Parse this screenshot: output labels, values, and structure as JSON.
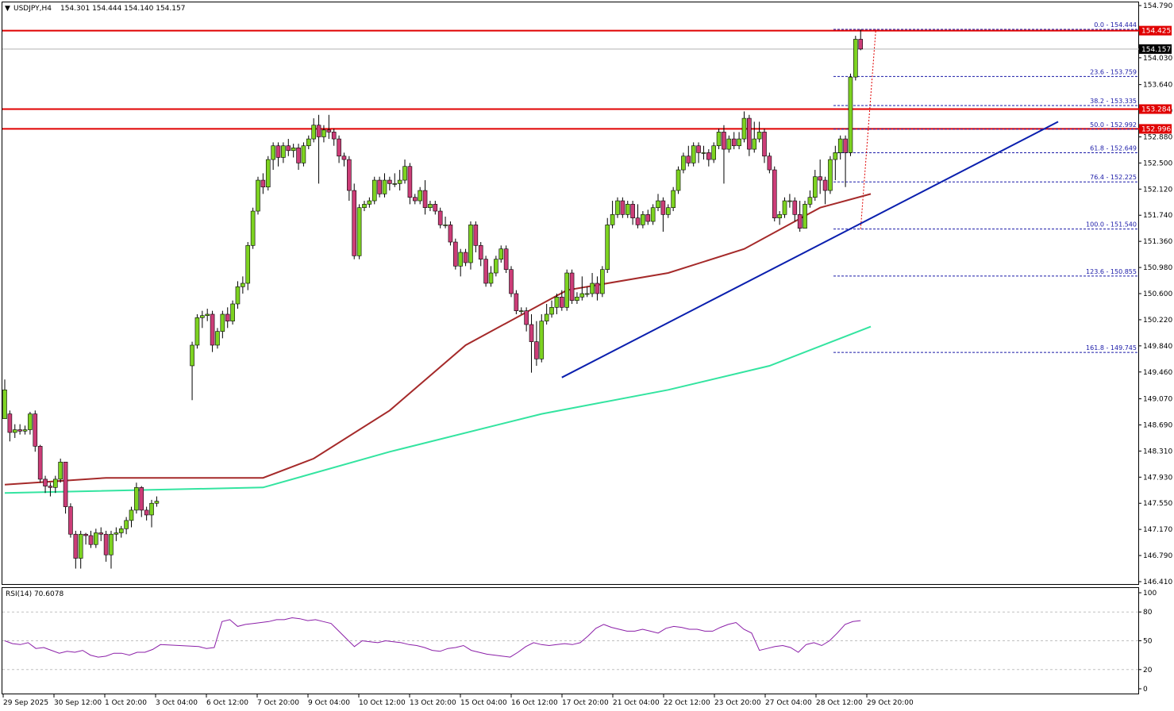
{
  "header": {
    "symbol": "USDJPY,H4",
    "ohlc": "154.301 154.444 154.140 154.157"
  },
  "rsi_panel": {
    "label": "RSI(14) 70.6078",
    "axis_labels": [
      "100",
      "80",
      "50",
      "20",
      "0"
    ]
  },
  "price_axis": {
    "labels": [
      "154.790",
      "154.030",
      "153.640",
      "153.260",
      "152.880",
      "152.500",
      "152.120",
      "151.740",
      "151.360",
      "150.980",
      "150.600",
      "150.220",
      "149.840",
      "149.460",
      "149.070",
      "148.690",
      "148.310",
      "147.930",
      "147.550",
      "147.170",
      "146.790",
      "146.410"
    ]
  },
  "time_axis": {
    "labels": [
      "29 Sep 2025",
      "30 Sep 12:00",
      "1 Oct 20:00",
      "3 Oct 04:00",
      "6 Oct 12:00",
      "7 Oct 20:00",
      "9 Oct 04:00",
      "10 Oct 12:00",
      "13 Oct 20:00",
      "15 Oct 04:00",
      "16 Oct 12:00",
      "17 Oct 20:00",
      "21 Oct 04:00",
      "22 Oct 12:00",
      "23 Oct 20:00",
      "27 Oct 04:00",
      "28 Oct 12:00",
      "29 Oct 20:00"
    ]
  },
  "horizontal_lines": [
    {
      "price": 154.425,
      "label": "154.425"
    },
    {
      "price": 153.284,
      "label": "153.284"
    },
    {
      "price": 152.996,
      "label": "152.996"
    }
  ],
  "current_price": {
    "price": 154.157,
    "label": "154.157"
  },
  "fibonacci": [
    {
      "price": 154.444,
      "label": "0.0 - 154.444"
    },
    {
      "price": 153.759,
      "label": "23.6 - 153.759"
    },
    {
      "price": 153.335,
      "label": "38.2 - 153.335"
    },
    {
      "price": 152.992,
      "label": "50.0 - 152.992"
    },
    {
      "price": 152.649,
      "label": "61.8 - 152.649"
    },
    {
      "price": 152.225,
      "label": "76.4 - 152.225"
    },
    {
      "price": 151.54,
      "label": "100.0 - 151.540"
    },
    {
      "price": 150.855,
      "label": "123.6 - 150.855"
    },
    {
      "price": 149.745,
      "label": "161.8 - 149.745"
    }
  ],
  "colors": {
    "bull": "#7dd321",
    "bear": "#cc3d78",
    "sma100": "#a52a2a",
    "sma200": "#33e4a0",
    "trendline": "#0a1fae",
    "level": "#e00000",
    "fib": "#1a1aa8",
    "rsi": "#8b1fa8"
  },
  "chart_data": {
    "type": "candlestick",
    "symbol": "USDJPY",
    "timeframe": "H4",
    "ylim": [
      146.41,
      154.79
    ],
    "candles": [
      [
        148.78,
        149.2,
        148.85,
        149.35
      ],
      [
        148.85,
        148.58,
        148.9,
        148.45
      ],
      [
        148.58,
        148.62,
        148.7,
        148.5
      ],
      [
        148.62,
        148.6,
        148.7,
        148.55
      ],
      [
        148.6,
        148.62,
        148.68,
        148.55
      ],
      [
        148.62,
        148.85,
        148.88,
        148.55
      ],
      [
        148.85,
        148.38,
        148.9,
        148.3
      ],
      [
        148.38,
        147.9,
        148.4,
        147.85
      ],
      [
        147.9,
        147.8,
        147.95,
        147.7
      ],
      [
        147.8,
        147.78,
        147.85,
        147.65
      ],
      [
        147.78,
        147.9,
        147.95,
        147.7
      ],
      [
        147.9,
        148.15,
        148.2,
        147.85
      ],
      [
        148.15,
        147.5,
        148.1,
        147.4
      ],
      [
        147.5,
        147.1,
        147.55,
        147.05
      ],
      [
        147.1,
        146.75,
        147.15,
        146.6
      ],
      [
        146.75,
        147.1,
        147.15,
        146.6
      ],
      [
        147.1,
        147.08,
        147.12,
        146.95
      ],
      [
        147.08,
        146.95,
        147.15,
        146.9
      ],
      [
        146.95,
        147.12,
        147.18,
        146.9
      ],
      [
        147.12,
        147.1,
        147.2,
        147.0
      ],
      [
        147.1,
        146.8,
        147.15,
        146.7
      ],
      [
        146.8,
        147.1,
        147.15,
        146.6
      ],
      [
        147.1,
        147.12,
        147.2,
        147.0
      ],
      [
        147.12,
        147.18,
        147.22,
        147.05
      ],
      [
        147.18,
        147.3,
        147.35,
        147.1
      ],
      [
        147.3,
        147.45,
        147.5,
        147.2
      ],
      [
        147.45,
        147.78,
        147.85,
        147.4
      ],
      [
        147.78,
        147.45,
        147.8,
        147.35
      ],
      [
        147.45,
        147.38,
        147.5,
        147.3
      ],
      [
        147.38,
        147.55,
        147.6,
        147.2
      ],
      [
        147.55,
        147.58,
        147.65,
        147.5
      ],
      [
        149.55,
        149.85,
        149.9,
        149.05
      ],
      [
        149.85,
        150.25,
        150.3,
        149.8
      ],
      [
        150.25,
        150.28,
        150.35,
        150.1
      ],
      [
        150.28,
        150.3,
        150.38,
        150.2
      ],
      [
        150.3,
        149.85,
        150.35,
        149.75
      ],
      [
        149.85,
        150.05,
        150.1,
        149.8
      ],
      [
        150.05,
        150.3,
        150.35,
        149.95
      ],
      [
        150.3,
        150.2,
        150.4,
        150.1
      ],
      [
        150.2,
        150.45,
        150.5,
        150.15
      ],
      [
        150.45,
        150.7,
        150.78,
        150.38
      ],
      [
        150.7,
        150.75,
        150.85,
        150.6
      ],
      [
        150.75,
        151.3,
        151.35,
        150.65
      ],
      [
        151.3,
        151.8,
        151.85,
        151.25
      ],
      [
        151.8,
        152.25,
        152.3,
        151.75
      ],
      [
        152.25,
        152.15,
        152.35,
        152.05
      ],
      [
        152.15,
        152.55,
        152.6,
        152.1
      ],
      [
        152.55,
        152.75,
        152.8,
        152.4
      ],
      [
        152.75,
        152.58,
        152.8,
        152.45
      ],
      [
        152.58,
        152.75,
        152.8,
        152.5
      ],
      [
        152.75,
        152.68,
        152.85,
        152.6
      ],
      [
        152.68,
        152.72,
        152.78,
        152.58
      ],
      [
        152.72,
        152.5,
        152.78,
        152.4
      ],
      [
        152.5,
        152.75,
        152.8,
        152.45
      ],
      [
        152.75,
        152.85,
        152.9,
        152.7
      ],
      [
        152.85,
        153.05,
        153.15,
        152.8
      ],
      [
        153.05,
        152.88,
        153.2,
        152.2
      ],
      [
        152.88,
        152.98,
        153.05,
        152.8
      ],
      [
        152.98,
        152.95,
        153.2,
        152.85
      ],
      [
        152.95,
        152.85,
        153.0,
        152.75
      ],
      [
        152.85,
        152.6,
        152.9,
        152.5
      ],
      [
        152.6,
        152.55,
        152.65,
        152.45
      ],
      [
        152.55,
        152.1,
        152.6,
        151.95
      ],
      [
        152.1,
        151.15,
        152.2,
        151.1
      ],
      [
        151.15,
        151.85,
        151.9,
        151.1
      ],
      [
        151.85,
        151.9,
        151.95,
        151.8
      ],
      [
        151.9,
        151.95,
        152.0,
        151.85
      ],
      [
        151.95,
        152.25,
        152.3,
        151.9
      ],
      [
        152.25,
        152.05,
        152.3,
        152.0
      ],
      [
        152.05,
        152.25,
        152.35,
        152.0
      ],
      [
        152.25,
        152.2,
        152.3,
        152.1
      ],
      [
        152.2,
        152.2,
        152.35,
        152.15
      ],
      [
        152.2,
        152.25,
        152.4,
        152.1
      ],
      [
        152.25,
        152.45,
        152.55,
        152.2
      ],
      [
        152.45,
        152.0,
        152.5,
        151.9
      ],
      [
        152.0,
        151.95,
        152.05,
        151.9
      ],
      [
        151.95,
        152.1,
        152.15,
        151.9
      ],
      [
        152.1,
        151.85,
        152.25,
        151.75
      ],
      [
        151.85,
        151.9,
        151.95,
        151.8
      ],
      [
        151.9,
        151.8,
        151.95,
        151.75
      ],
      [
        151.8,
        151.6,
        151.85,
        151.55
      ],
      [
        151.6,
        151.6,
        151.72,
        151.55
      ],
      [
        151.6,
        151.35,
        151.65,
        151.3
      ],
      [
        151.35,
        151.0,
        151.4,
        150.95
      ],
      [
        151.0,
        151.2,
        151.25,
        150.85
      ],
      [
        151.2,
        151.05,
        151.25,
        151.0
      ],
      [
        151.05,
        151.6,
        151.65,
        150.95
      ],
      [
        151.6,
        151.3,
        151.65,
        151.2
      ],
      [
        151.3,
        151.1,
        151.35,
        151.0
      ],
      [
        151.1,
        150.75,
        151.15,
        150.7
      ],
      [
        150.75,
        150.9,
        151.0,
        150.7
      ],
      [
        150.9,
        151.1,
        151.15,
        150.85
      ],
      [
        151.1,
        151.25,
        151.3,
        151.05
      ],
      [
        151.25,
        150.95,
        151.3,
        150.9
      ],
      [
        150.95,
        150.6,
        151.0,
        150.55
      ],
      [
        150.6,
        150.35,
        150.65,
        150.3
      ],
      [
        150.35,
        150.35,
        150.4,
        150.3
      ],
      [
        150.35,
        150.15,
        150.4,
        150.05
      ],
      [
        150.15,
        149.9,
        150.3,
        149.45
      ],
      [
        149.9,
        149.65,
        150.2,
        149.55
      ],
      [
        149.65,
        150.2,
        150.3,
        149.6
      ],
      [
        150.2,
        150.3,
        150.45,
        150.15
      ],
      [
        150.3,
        150.4,
        150.5,
        150.25
      ],
      [
        150.4,
        150.55,
        150.6,
        150.3
      ],
      [
        150.55,
        150.4,
        150.65,
        150.35
      ],
      [
        150.4,
        150.9,
        150.95,
        150.35
      ],
      [
        150.9,
        150.5,
        150.95,
        150.45
      ],
      [
        150.5,
        150.55,
        150.62,
        150.45
      ],
      [
        150.55,
        150.6,
        150.85,
        150.5
      ],
      [
        150.6,
        150.6,
        150.7,
        150.55
      ],
      [
        150.6,
        150.75,
        150.9,
        150.55
      ],
      [
        150.75,
        150.6,
        150.85,
        150.5
      ],
      [
        150.6,
        150.95,
        151.0,
        150.55
      ],
      [
        150.95,
        151.6,
        151.7,
        150.9
      ],
      [
        151.6,
        151.75,
        151.95,
        151.55
      ],
      [
        151.75,
        151.95,
        152.0,
        151.7
      ],
      [
        151.95,
        151.75,
        152.0,
        151.7
      ],
      [
        151.75,
        151.9,
        151.95,
        151.7
      ],
      [
        151.9,
        151.7,
        151.95,
        151.6
      ],
      [
        151.7,
        151.6,
        151.9,
        151.55
      ],
      [
        151.6,
        151.75,
        151.8,
        151.55
      ],
      [
        151.75,
        151.65,
        151.82,
        151.6
      ],
      [
        151.65,
        151.85,
        151.9,
        151.6
      ],
      [
        151.85,
        151.95,
        152.05,
        151.8
      ],
      [
        151.95,
        151.75,
        152.0,
        151.5
      ],
      [
        151.75,
        151.85,
        151.9,
        151.7
      ],
      [
        151.85,
        152.1,
        152.15,
        151.8
      ],
      [
        152.1,
        152.4,
        152.45,
        152.05
      ],
      [
        152.4,
        152.6,
        152.65,
        152.35
      ],
      [
        152.6,
        152.5,
        152.75,
        152.45
      ],
      [
        152.5,
        152.75,
        152.8,
        152.45
      ],
      [
        152.75,
        152.65,
        152.8,
        152.5
      ],
      [
        152.65,
        152.65,
        152.75,
        152.55
      ],
      [
        152.65,
        152.55,
        152.7,
        152.45
      ],
      [
        152.55,
        152.75,
        152.8,
        152.5
      ],
      [
        152.75,
        152.95,
        153.0,
        152.7
      ],
      [
        152.95,
        152.7,
        153.05,
        152.2
      ],
      [
        152.7,
        152.85,
        152.9,
        152.65
      ],
      [
        152.85,
        152.75,
        152.95,
        152.7
      ],
      [
        152.75,
        152.85,
        152.95,
        152.7
      ],
      [
        152.85,
        153.15,
        153.25,
        152.8
      ],
      [
        153.15,
        152.7,
        153.2,
        152.6
      ],
      [
        152.7,
        152.85,
        153.1,
        152.65
      ],
      [
        152.85,
        152.95,
        153.1,
        152.8
      ],
      [
        152.95,
        152.6,
        153.0,
        152.5
      ],
      [
        152.6,
        152.4,
        152.65,
        152.35
      ],
      [
        152.4,
        151.7,
        152.45,
        151.65
      ],
      [
        151.7,
        151.75,
        151.8,
        151.6
      ],
      [
        151.75,
        151.95,
        152.0,
        151.7
      ],
      [
        151.95,
        151.95,
        152.05,
        151.85
      ],
      [
        151.95,
        151.75,
        152.0,
        151.65
      ],
      [
        151.75,
        151.55,
        151.95,
        151.5
      ],
      [
        151.55,
        151.9,
        151.95,
        151.55
      ],
      [
        151.9,
        152.0,
        152.1,
        151.85
      ],
      [
        152.0,
        152.3,
        152.4,
        151.95
      ],
      [
        152.3,
        152.25,
        152.55,
        152.05
      ],
      [
        152.25,
        152.1,
        152.3,
        151.9
      ],
      [
        152.1,
        152.55,
        152.6,
        152.05
      ],
      [
        152.55,
        152.65,
        152.75,
        152.25
      ],
      [
        152.65,
        152.85,
        152.9,
        152.55
      ],
      [
        152.85,
        152.65,
        152.9,
        152.15
      ],
      [
        152.65,
        153.75,
        153.8,
        152.6
      ],
      [
        153.75,
        154.3,
        154.35,
        153.7
      ],
      [
        154.3,
        154.157,
        154.444,
        154.14
      ]
    ],
    "sma_100": [
      [
        0,
        147.82
      ],
      [
        20,
        147.92
      ],
      [
        45,
        147.92
      ],
      [
        55,
        148.2
      ],
      [
        70,
        148.9
      ],
      [
        85,
        149.85
      ],
      [
        105,
        150.65
      ],
      [
        125,
        150.9
      ],
      [
        140,
        151.25
      ],
      [
        155,
        151.85
      ],
      [
        165,
        152.05
      ]
    ],
    "sma_200": [
      [
        0,
        147.7
      ],
      [
        45,
        147.78
      ],
      [
        70,
        148.3
      ],
      [
        100,
        148.85
      ],
      [
        125,
        149.2
      ],
      [
        145,
        149.55
      ],
      [
        165,
        150.12
      ]
    ],
    "rsi_14": {
      "range": [
        0,
        100
      ],
      "last": 70.6078,
      "values": [
        50,
        47,
        46,
        48,
        42,
        43,
        40,
        37,
        39,
        38,
        40,
        35,
        33,
        34,
        37,
        37,
        35,
        38,
        38,
        41,
        46,
        44,
        42,
        43,
        70,
        72,
        65,
        67,
        68,
        69,
        70,
        72,
        72,
        74,
        73,
        71,
        72,
        70,
        68,
        60,
        52,
        44,
        50,
        49,
        48,
        50,
        49,
        48,
        46,
        45,
        43,
        40,
        39,
        42,
        43,
        45,
        40,
        38,
        36,
        35,
        34,
        33,
        38,
        44,
        48,
        46,
        45,
        46,
        47,
        46,
        48,
        55,
        63,
        67,
        64,
        62,
        60,
        60,
        62,
        60,
        58,
        63,
        65,
        64,
        62,
        62,
        60,
        60,
        64,
        67,
        69,
        62,
        58,
        40,
        42,
        44,
        45,
        43,
        38,
        46,
        48,
        45,
        50,
        58,
        67,
        70,
        71
      ]
    },
    "trendline": {
      "from": [
        104,
        149.38
      ],
      "to": [
        202,
        153.1
      ],
      "color": "blue"
    },
    "fib_levels": {
      "0.0": 154.444,
      "23.6": 153.759,
      "38.2": 153.335,
      "50.0": 152.992,
      "61.8": 152.649,
      "76.4": 152.225,
      "100.0": 151.54,
      "123.6": 150.855,
      "161.8": 149.745
    }
  }
}
